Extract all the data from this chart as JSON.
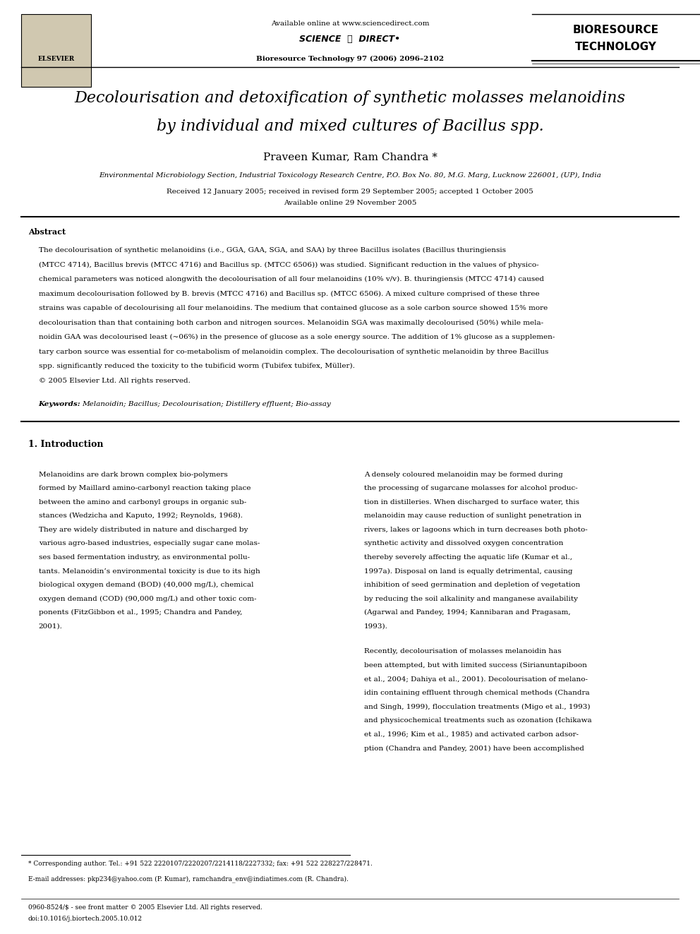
{
  "page_width": 9.92,
  "page_height": 13.23,
  "background_color": "#ffffff",
  "header": {
    "available_online": "Available online at www.sciencedirect.com",
    "journal_info": "Bioresource Technology 97 (2006) 2096–2102",
    "elsevier_text": "ELSEVIER",
    "bioresource_line1": "BIORESOURCE",
    "bioresource_line2": "TECHNOLOGY"
  },
  "title_line1": "Decolourisation and detoxification of synthetic molasses melanoidins",
  "title_line2": "by individual and mixed cultures of ",
  "title_bacillus": "Bacillus",
  "title_spp": " spp.",
  "authors": "Praveen Kumar, Ram Chandra *",
  "affiliation": "Environmental Microbiology Section, Industrial Toxicology Research Centre, P.O. Box No. 80, M.G. Marg, Lucknow 226001, (UP), India",
  "received": "Received 12 January 2005; received in revised form 29 September 2005; accepted 1 October 2005",
  "available_online_date": "Available online 29 November 2005",
  "abstract_heading": "Abstract",
  "abstract_text": "The decolourisation of synthetic melanoidins (i.e., GGA, GAA, SGA, and SAA) by three Bacillus isolates (Bacillus thuringiensis (MTCC 4714), Bacillus brevis (MTCC 4716) and Bacillus sp. (MTCC 6506)) was studied. Significant reduction in the values of physico-chemical parameters was noticed alongwith the decolourisation of all four melanoidins (10% v/v). B. thuringiensis (MTCC 4714) caused maximum decolourisation followed by B. brevis (MTCC 4716) and Bacillus sp. (MTCC 6506). A mixed culture comprised of these three strains was capable of decolourising all four melanoidins. The medium that contained glucose as a sole carbon source showed 15% more decolourisation than that containing both carbon and nitrogen sources. Melanoidin SGA was maximally decolourised (50%) while melanoidin GAA was decolourised least (~06%) in the presence of glucose as a sole energy source. The addition of 1% glucose as a supplementary carbon source was essential for co-metabolism of melanoidin complex. The decolourisation of synthetic melanoidin by three Bacillus spp. significantly reduced the toxicity to the tubificid worm (Tubifex tubifex, Müller).\n© 2005 Elsevier Ltd. All rights reserved.",
  "keywords_label": "Keywords: ",
  "keywords_text": "Melanoidin; Bacillus; Decolourisation; Distillery effluent; Bio-assay",
  "section1_heading": "1. Introduction",
  "col1_para1": "Melanoidins are dark brown complex bio-polymers formed by Maillard amino-carbonyl reaction taking place between the amino and carbonyl groups in organic substances (Wedzicha and Kaputo, 1992; Reynolds, 1968). They are widely distributed in nature and discharged by various agro-based industries, especially sugar cane molasses based fermentation industry, as environmental pollutants. Melanoidin’s environmental toxicity is due to its high biological oxygen demand (BOD) (40,000 mg/L), chemical oxygen demand (COD) (90,000 mg/L) and other toxic components (FitzGibbon et al., 1995; Chandra and Pandey, 2001).",
  "col2_para1": "A densely coloured melanoidin may be formed during the processing of sugarcane molasses for alcohol production in distilleries. When discharged to surface water, this melanoidin may cause reduction of sunlight penetration in rivers, lakes or lagoons which in turn decreases both photosynthetic activity and dissolved oxygen concentration thereby severely affecting the aquatic life (Kumar et al., 1997a). Disposal on land is equally detrimental, causing inhibition of seed germination and depletion of vegetation by reducing the soil alkalinity and manganese availability (Agarwal and Pandey, 1994; Kannibaran and Pragasam, 1993).",
  "col2_para2": "Recently, decolourisation of molasses melanoidin has been attempted, but with limited success (Sirianuntapiboon et al., 2004; Dahiya et al., 2001). Decolourisation of melanoidin containing effluent through chemical methods (Chandra and Singh, 1999), flocculation treatments (Migo et al., 1993) and physicochemical treatments such as ozonation (Ichikawa et al., 1996; Kim et al., 1985) and activated carbon adsorption (Chandra and Pandey, 2001) have been accomplished",
  "footnote_star": "* Corresponding author. Tel.: +91 522 2220107/2220207/2214118/2227332; fax: +91 522 228227/228471.",
  "footnote_email": "E-mail addresses: pkp234@yahoo.com (P. Kumar), ramchandra_env@indiatimes.com (R. Chandra).",
  "bottom_issn": "0960-8524/$ - see front matter © 2005 Elsevier Ltd. All rights reserved.",
  "bottom_doi": "doi:10.1016/j.biortech.2005.10.012"
}
